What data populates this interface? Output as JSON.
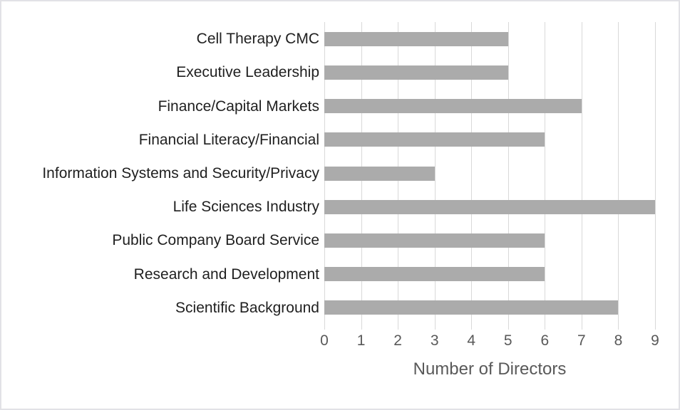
{
  "chart_data": {
    "type": "bar",
    "orientation": "horizontal",
    "categories": [
      "Cell Therapy CMC",
      "Executive Leadership",
      "Finance/Capital Markets",
      "Financial Literacy/Financial",
      "Information Systems and Security/Privacy",
      "Life Sciences Industry",
      "Public Company Board Service",
      "Research and Development",
      "Scientific Background"
    ],
    "values": [
      5,
      5,
      7,
      6,
      3,
      9,
      6,
      6,
      8
    ],
    "title": "",
    "xlabel": "Number of Directors",
    "ylabel": "",
    "xlim": [
      0,
      9
    ],
    "xticks": [
      0,
      1,
      2,
      3,
      4,
      5,
      6,
      7,
      8,
      9
    ],
    "grid": true,
    "legend": "none",
    "colors": {
      "bar": "#ababab",
      "gridline": "#d9d9d9",
      "tick_label": "#595959",
      "axis_title": "#595959",
      "category_label": "#1f1f1f",
      "background": "#ffffff",
      "frame_border": "#e2e2e6"
    }
  }
}
